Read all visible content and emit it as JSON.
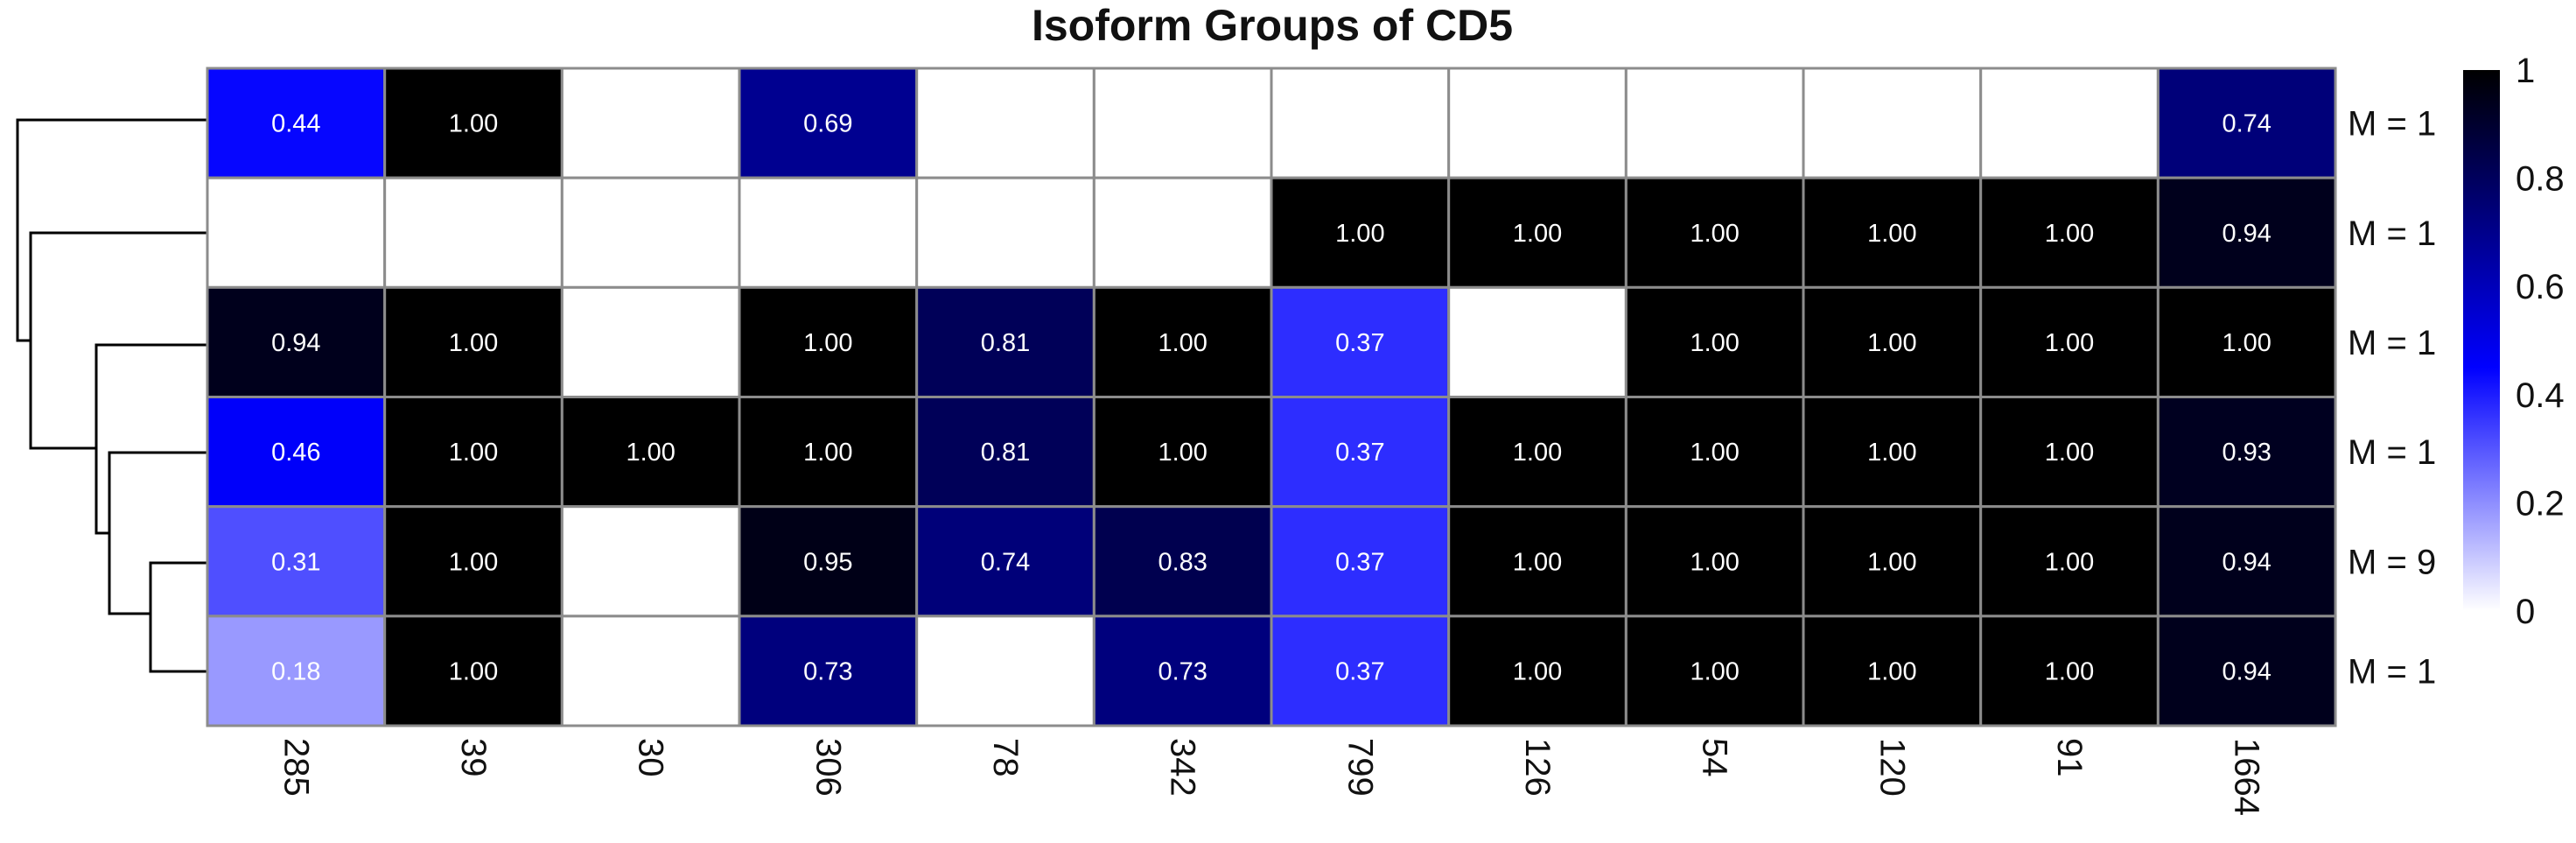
{
  "chart_data": {
    "type": "heatmap",
    "title": "Isoform Groups of CD5",
    "columns": [
      "285",
      "39",
      "30",
      "306",
      "78",
      "342",
      "799",
      "126",
      "54",
      "120",
      "91",
      "1664"
    ],
    "rows": [
      "M = 1",
      "M = 1",
      "M = 1",
      "M = 1",
      "M = 9",
      "M = 1"
    ],
    "values": [
      [
        0.44,
        1.0,
        null,
        0.69,
        null,
        null,
        null,
        null,
        null,
        null,
        null,
        0.74
      ],
      [
        null,
        null,
        null,
        null,
        null,
        null,
        1.0,
        1.0,
        1.0,
        1.0,
        1.0,
        0.94
      ],
      [
        0.94,
        1.0,
        null,
        1.0,
        0.81,
        1.0,
        0.37,
        null,
        1.0,
        1.0,
        1.0,
        1.0
      ],
      [
        0.46,
        1.0,
        1.0,
        1.0,
        0.81,
        1.0,
        0.37,
        1.0,
        1.0,
        1.0,
        1.0,
        0.93
      ],
      [
        0.31,
        1.0,
        null,
        0.95,
        0.74,
        0.83,
        0.37,
        1.0,
        1.0,
        1.0,
        1.0,
        0.94
      ],
      [
        0.18,
        1.0,
        null,
        0.73,
        null,
        0.73,
        0.37,
        1.0,
        1.0,
        1.0,
        1.0,
        0.94
      ]
    ],
    "color_scale": {
      "range": [
        0,
        1
      ],
      "ticks": [
        "0",
        "0.2",
        "0.4",
        "0.6",
        "0.8",
        "1"
      ],
      "stops": [
        {
          "value": 0,
          "color": "#ffffff"
        },
        {
          "value": 0.45,
          "color": "#0000ff"
        },
        {
          "value": 1,
          "color": "#000000"
        }
      ]
    },
    "dendrogram": "row",
    "legend_position": "right"
  }
}
